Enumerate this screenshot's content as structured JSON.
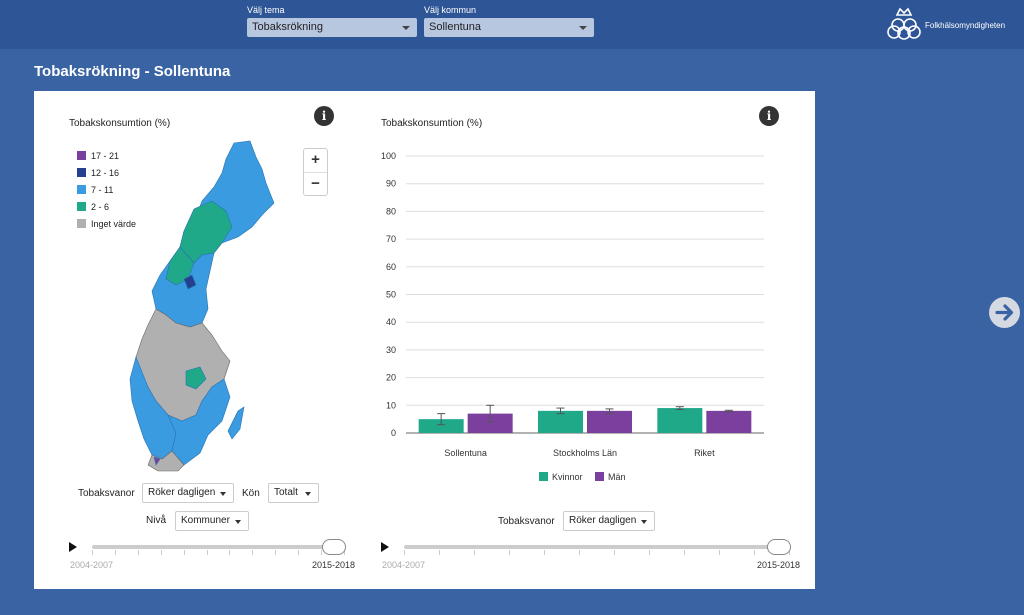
{
  "topbar": {
    "theme": {
      "label": "Välj tema",
      "value": "Tobaksrökning"
    },
    "municipality": {
      "label": "Välj kommun",
      "value": "Sollentuna"
    },
    "brand": "Folkhälsomyndigheten"
  },
  "page": {
    "title": "Tobaksrökning - Sollentuna"
  },
  "map_panel": {
    "title": "Tobakskonsumtion (%)",
    "legend": [
      {
        "label": "17 - 21",
        "color": "#7b3f9e"
      },
      {
        "label": "12 - 16",
        "color": "#24408f"
      },
      {
        "label": "7 - 11",
        "color": "#3a9be0"
      },
      {
        "label": "2 - 6",
        "color": "#1fa989"
      },
      {
        "label": "Inget värde",
        "color": "#b0b0b0"
      }
    ],
    "zoom_in": "+",
    "zoom_out": "−",
    "habit_label": "Tobaksvanor",
    "habit_value": "Röker dagligen",
    "gender_label": "Kön",
    "gender_value": "Totalt",
    "level_label": "Nivå",
    "level_value": "Kommuner",
    "slider": {
      "start": "2004-2007",
      "end": "2015-2018"
    }
  },
  "chart_panel": {
    "habit_label": "Tobaksvanor",
    "habit_value": "Röker dagligen",
    "slider": {
      "start": "2004-2007",
      "end": "2015-2018"
    }
  },
  "chart_data": {
    "type": "bar",
    "title": "Tobakskonsumtion (%)",
    "categories": [
      "Sollentuna",
      "Stockholms Län",
      "Riket"
    ],
    "series": [
      {
        "name": "Kvinnor",
        "color": "#1fa989",
        "values": [
          5,
          8,
          9
        ],
        "error": [
          [
            3,
            7
          ],
          [
            7,
            9
          ],
          [
            8.5,
            9.5
          ]
        ]
      },
      {
        "name": "Män",
        "color": "#7b3f9e",
        "values": [
          7,
          8,
          8
        ],
        "error": [
          [
            4,
            10
          ],
          [
            7,
            8.7
          ],
          [
            7.6,
            8.2
          ]
        ]
      }
    ],
    "yticks": [
      0,
      10,
      20,
      30,
      40,
      50,
      60,
      70,
      80,
      90,
      100
    ],
    "ylim": [
      0,
      100
    ],
    "grid": true,
    "legend_position": "bottom"
  }
}
